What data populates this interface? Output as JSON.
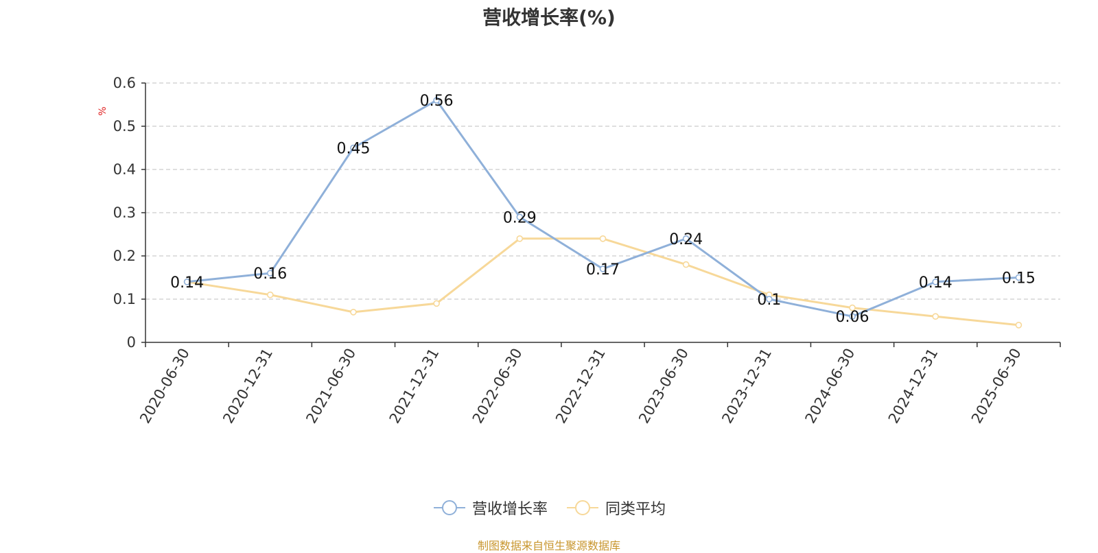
{
  "chart_data": {
    "type": "line",
    "title": "营收增长率(%)",
    "ylabel": "%",
    "xlabel": "",
    "categories": [
      "2020-06-30",
      "2020-12-31",
      "2021-06-30",
      "2021-12-31",
      "2022-06-30",
      "2022-12-31",
      "2023-06-30",
      "2023-12-31",
      "2024-06-30",
      "2024-12-31",
      "2025-06-30"
    ],
    "ylim": [
      0,
      0.6
    ],
    "yticks": [
      "0",
      "0.1",
      "0.2",
      "0.3",
      "0.4",
      "0.5",
      "0.6"
    ],
    "grid": true,
    "legend_position": "bottom",
    "series": [
      {
        "name": "营收增长率",
        "color": "#8fb0d9",
        "values": [
          0.14,
          0.16,
          0.45,
          0.56,
          0.29,
          0.17,
          0.24,
          0.1,
          0.06,
          0.14,
          0.15
        ],
        "labels": [
          "0.14",
          "0.16",
          "0.45",
          "0.56",
          "0.29",
          "0.17",
          "0.24",
          "0.1",
          "0.06",
          "0.14",
          "0.15"
        ]
      },
      {
        "name": "同类平均",
        "color": "#f7d899",
        "values": [
          0.14,
          0.11,
          0.07,
          0.09,
          0.24,
          0.24,
          0.18,
          0.11,
          0.08,
          0.06,
          0.04
        ]
      }
    ],
    "source_note": "制图数据来自恒生聚源数据库"
  }
}
